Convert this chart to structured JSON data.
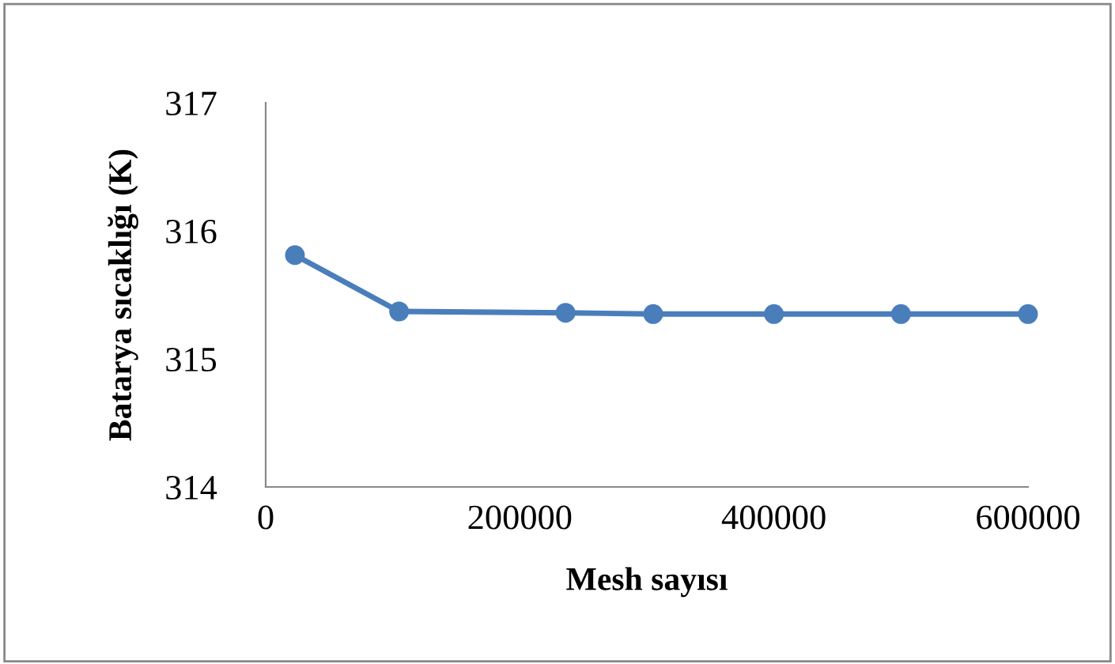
{
  "chart_data": {
    "type": "line",
    "xlabel": "Mesh sayısı",
    "ylabel": "Batarya sıcaklığı (K)",
    "x": [
      23000,
      105000,
      236000,
      305000,
      400000,
      500000,
      600000
    ],
    "series": [
      {
        "color": "#4a7ebb",
        "values": [
          315.81,
          315.37,
          315.36,
          315.35,
          315.35,
          315.35,
          315.35
        ]
      }
    ],
    "xlim": [
      0,
      600000
    ],
    "xticks": [
      0,
      200000,
      400000,
      600000
    ],
    "ylim": [
      314,
      317
    ],
    "yticks": [
      314,
      315,
      316,
      317
    ],
    "grid": false,
    "legend": false,
    "marker": "circle",
    "line_style": "solid"
  }
}
